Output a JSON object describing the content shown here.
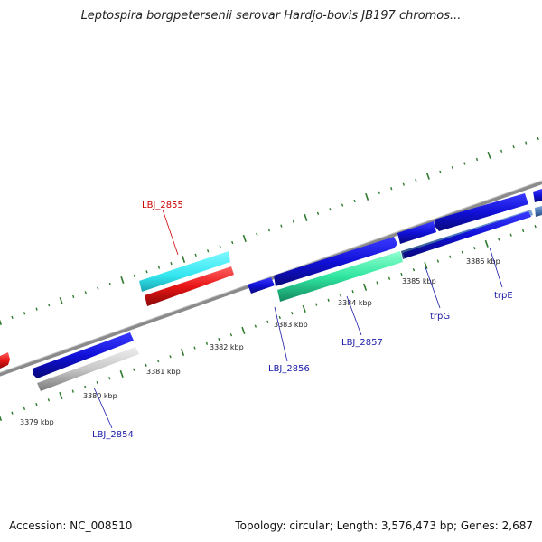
{
  "title": "Leptospira borgpetersenii serovar Hardjo-bovis JB197 chromos...",
  "footer": {
    "accession": "Accession: NC_008510",
    "topology": "Topology: circular; Length: 3,576,473 bp; Genes: 2,687"
  },
  "colors": {
    "backbone": "#808080",
    "tick": "#2f7a2f",
    "forward_gene": "#1010d8",
    "highlight_cyan": "#33e6f0",
    "highlight_red": "#e81515",
    "highlight_green": "#30e6a0",
    "reverse_gray": "#c8c8c8",
    "label_red": "#cc0000",
    "label_blue": "#1a1aa8"
  },
  "map": {
    "kbp_labels": [
      {
        "text": "3379 kbp",
        "pos": 3379.0
      },
      {
        "text": "3380 kbp",
        "pos": 3380.0
      },
      {
        "text": "3381 kbp",
        "pos": 3381.0
      },
      {
        "text": "3382 kbp",
        "pos": 3382.0
      },
      {
        "text": "3383 kbp",
        "pos": 3383.0
      },
      {
        "text": "3384 kbp",
        "pos": 3384.0
      },
      {
        "text": "3385 kbp",
        "pos": 3385.0
      },
      {
        "text": "3386 kbp",
        "pos": 3386.0
      }
    ],
    "genes": [
      {
        "name": "LBJ_2855",
        "color": "highlight_red"
      },
      {
        "name": "LBJ_2854",
        "color": "reverse_gray"
      },
      {
        "name": "LBJ_2856",
        "color": "forward_gene"
      },
      {
        "name": "LBJ_2857",
        "color": "highlight_green"
      },
      {
        "name": "trpG",
        "color": "forward_gene"
      },
      {
        "name": "trpE",
        "color": "forward_gene"
      }
    ]
  }
}
